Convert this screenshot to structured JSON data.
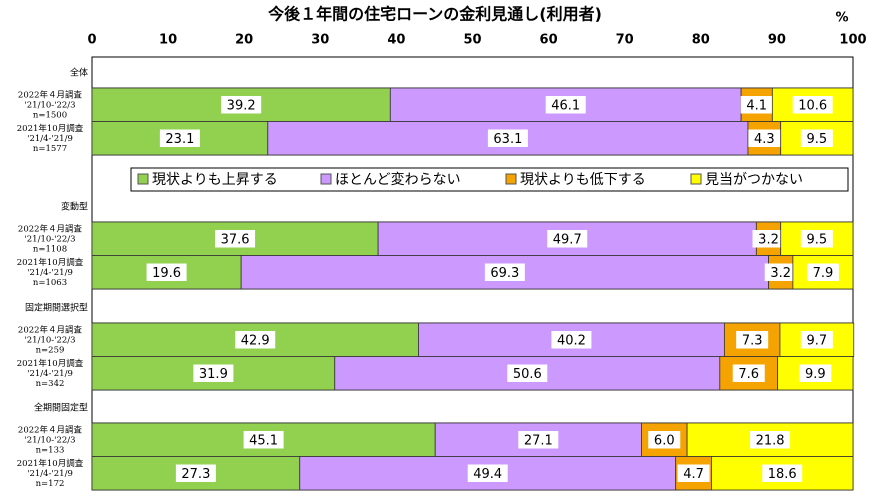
{
  "chart_data": {
    "type": "stacked-bar-horizontal",
    "title": "今後１年間の住宅ローンの金利見通し(利用者)",
    "x_unit": "%",
    "xlim": [
      0,
      100
    ],
    "xticks": [
      0,
      10,
      20,
      30,
      40,
      50,
      60,
      70,
      80,
      90,
      100
    ],
    "groups": [
      "全体",
      "変動型",
      "固定期間選択型",
      "全期間固定型"
    ],
    "categories": [
      [
        "2022年４月調査",
        "'21/10-'22/3",
        "n=1500"
      ],
      [
        "2021年10月調査",
        "'21/4-'21/9",
        "n=1577"
      ],
      [
        "2022年４月調査",
        "'21/10-'22/3",
        "n=1108"
      ],
      [
        "2021年10月調査",
        "'21/4-'21/9",
        "n=1063"
      ],
      [
        "2022年４月調査",
        "'21/10-'22/3",
        "n=259"
      ],
      [
        "2021年10月調査",
        "'21/4-'21/9",
        "n=342"
      ],
      [
        "2022年４月調査",
        "'21/10-'22/3",
        "n=133"
      ],
      [
        "2021年10月調査",
        "'21/4-'21/9",
        "n=172"
      ]
    ],
    "legend": "top-inside",
    "series": [
      {
        "name": "現状よりも上昇する",
        "color": "#92d050",
        "values": [
          39.2,
          23.1,
          37.6,
          19.6,
          42.9,
          31.9,
          45.1,
          27.3
        ]
      },
      {
        "name": "ほとんど変わらない",
        "color": "#cc99ff",
        "values": [
          46.1,
          63.1,
          49.7,
          69.3,
          40.2,
          50.6,
          27.1,
          49.4
        ]
      },
      {
        "name": "現状よりも低下する",
        "color": "#f5a300",
        "values": [
          4.1,
          4.3,
          3.2,
          3.2,
          7.3,
          7.6,
          6.0,
          4.7
        ],
        "value_labels": [
          "4.1",
          "4.3",
          "3.2",
          "3.2",
          "7.3",
          "7.6",
          "6.0",
          "4.7"
        ]
      },
      {
        "name": "見当がつかない",
        "color": "#ffff00",
        "values": [
          10.6,
          9.5,
          9.5,
          7.9,
          9.7,
          9.9,
          21.8,
          18.6
        ]
      }
    ]
  }
}
